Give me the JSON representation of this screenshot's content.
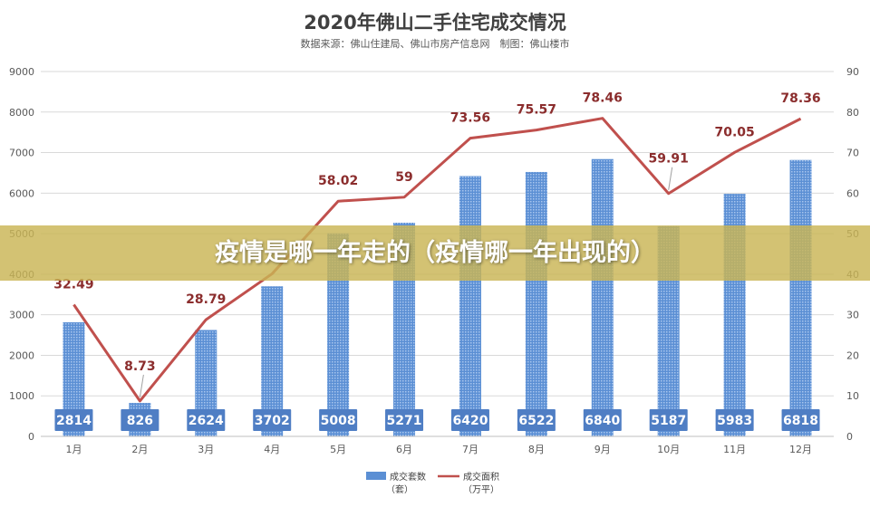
{
  "chart_data": {
    "type": "bar",
    "title": "2020年佛山二手住宅成交情况",
    "subtitle": "数据来源：佛山住建局、佛山市房产信息网　制图：佛山楼市",
    "categories": [
      "1月",
      "2月",
      "3月",
      "4月",
      "5月",
      "6月",
      "7月",
      "8月",
      "9月",
      "10月",
      "11月",
      "12月"
    ],
    "series": [
      {
        "name": "成交套数",
        "unit": "（套）",
        "type": "bar",
        "axis": "left",
        "color": "#5b8fd4",
        "values": [
          2814,
          826,
          2624,
          3702,
          5008,
          5271,
          6420,
          6522,
          6840,
          5187,
          5983,
          6818
        ]
      },
      {
        "name": "成交面积",
        "unit": "（万平）",
        "type": "line",
        "axis": "right",
        "color": "#c0504d",
        "values": [
          32.49,
          8.73,
          28.79,
          40.1,
          58.02,
          59,
          73.56,
          75.57,
          78.46,
          59.91,
          70.05,
          78.36
        ],
        "labels": [
          "32.49",
          "8.73",
          "28.79",
          "",
          "58.02",
          "59",
          "73.56",
          "75.57",
          "78.46",
          "59.91",
          "70.05",
          "78.36"
        ]
      }
    ],
    "y_left": {
      "min": 0,
      "max": 9000,
      "ticks": [
        "0",
        "1000",
        "2000",
        "3000",
        "4000",
        "5000",
        "6000",
        "7000",
        "8000",
        "9000"
      ]
    },
    "y_right": {
      "min": 0,
      "max": 90,
      "ticks": [
        "0",
        "10",
        "20",
        "30",
        "40",
        "50",
        "60",
        "70",
        "80",
        "90"
      ]
    },
    "grid": true,
    "legend_position": "bottom"
  },
  "overlay": {
    "banner_text": "疫情是哪一年走的（疫情哪一年出现的）"
  }
}
